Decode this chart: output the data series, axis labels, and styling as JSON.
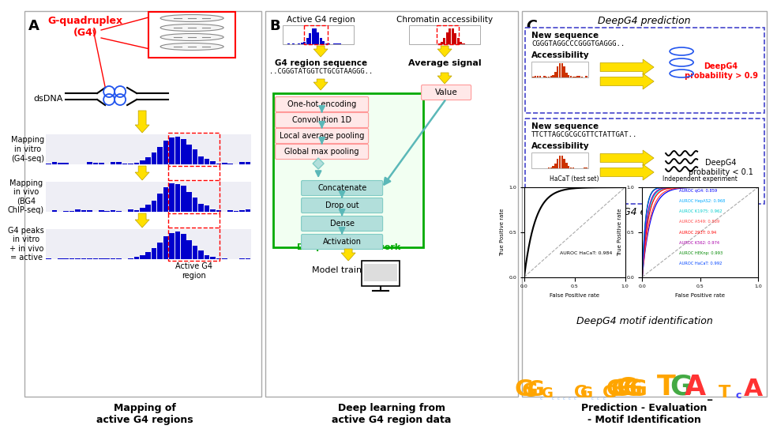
{
  "title_A": "Mapping of\nactive G4 regions",
  "title_B": "Deep learning from\nactive G4 region data",
  "title_C": "Prediction - Evaluation\n- Motif Identification",
  "panel_B": {
    "nn_steps": [
      "One-hot encoding",
      "Convolution 1D",
      "Local average pooling",
      "Global max pooling"
    ],
    "sequence_text": "..CGGGTATGGTCTGCGTAAGGG.."
  },
  "panel_C": {
    "seq1": "CGGGTAGGCCCGGGTGAGGG..",
    "seq2": "TTCTTAGCGCGCGTTCTATTGAT..",
    "roc1_title": "HaCaT (test set)",
    "roc1_auroc": "AUROC HaCaT: 0.984",
    "roc2_title": "Independent experiment",
    "roc2_lines": [
      {
        "label": "AUROC qG4: 0.859",
        "color": "#0000FF"
      },
      {
        "label": "AUROC HepAS2: 0.968",
        "color": "#00AAFF"
      },
      {
        "label": "AUROC K1975: 0.962",
        "color": "#00CCCC"
      },
      {
        "label": "AUROC A549: 0.889",
        "color": "#FF4444"
      },
      {
        "label": "AUROC 293T: 0.94",
        "color": "#FF0000"
      },
      {
        "label": "AUROC K562: 0.974",
        "color": "#AA00AA"
      },
      {
        "label": "AUROC HEKnp: 0.993",
        "color": "#008800"
      },
      {
        "label": "AUROC HaCaT: 0.992",
        "color": "#0044FF"
      }
    ]
  }
}
